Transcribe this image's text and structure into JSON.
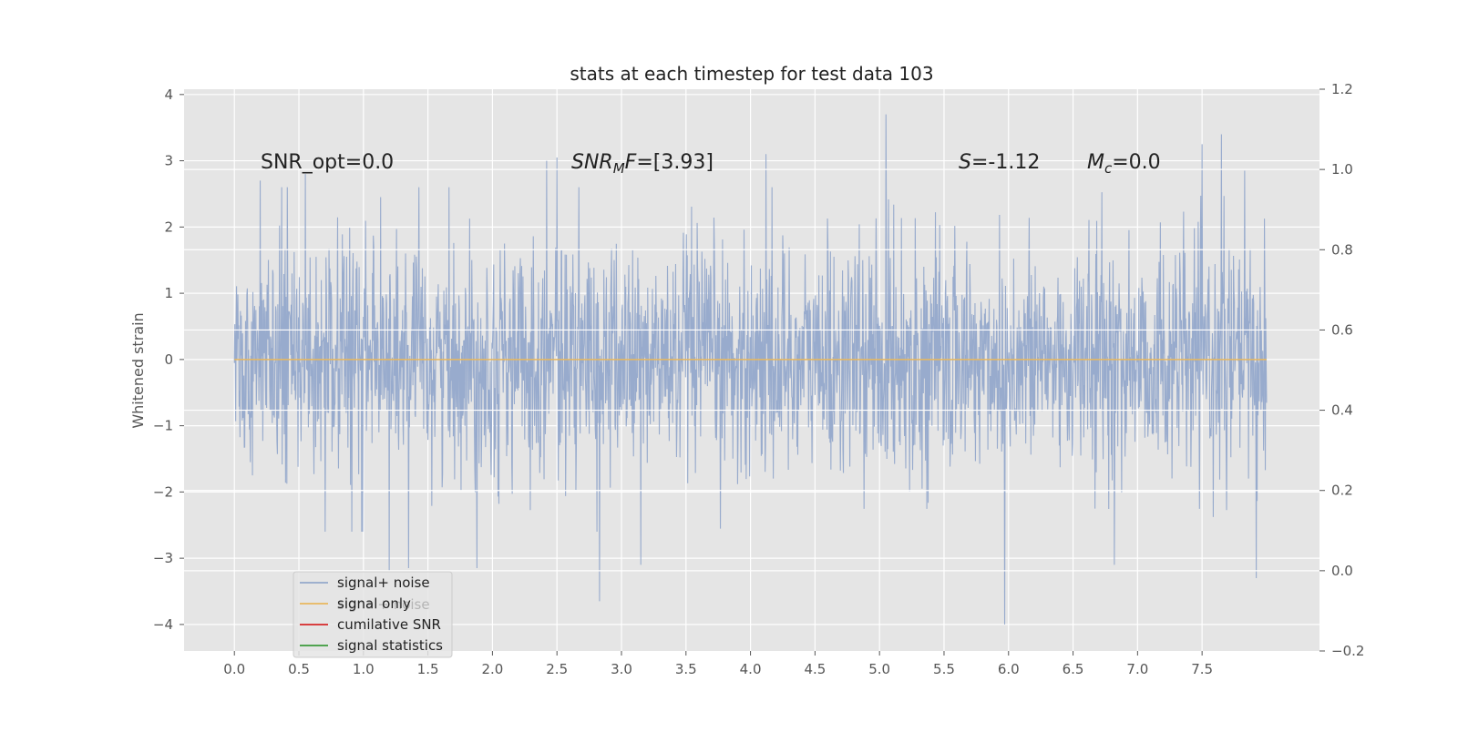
{
  "chart_data": {
    "type": "line",
    "title": "stats at each timestep for test data 103",
    "ylabel": "Whitened strain",
    "xlabel": "",
    "xlim": [
      -0.39,
      8.41
    ],
    "ylim": [
      -4.4,
      4.08
    ],
    "y2lim": [
      -0.2,
      1.2
    ],
    "x_ticks": [
      0.0,
      0.5,
      1.0,
      1.5,
      2.0,
      2.5,
      3.0,
      3.5,
      4.0,
      4.5,
      5.0,
      5.5,
      6.0,
      6.5,
      7.0,
      7.5
    ],
    "x_tick_labels": [
      "0.0",
      "0.5",
      "1.0",
      "1.5",
      "2.0",
      "2.5",
      "3.0",
      "3.5",
      "4.0",
      "4.5",
      "5.0",
      "5.5",
      "6.0",
      "6.5",
      "7.0",
      "7.5"
    ],
    "y_ticks": [
      -4,
      -3,
      -2,
      -1,
      0,
      1,
      2,
      3,
      4
    ],
    "y_tick_labels": [
      "−4",
      "−3",
      "−2",
      "−1",
      "0",
      "1",
      "2",
      "3",
      "4"
    ],
    "y2_ticks": [
      -0.2,
      0.0,
      0.2,
      0.4,
      0.6,
      0.8,
      1.0,
      1.2
    ],
    "y2_tick_labels": [
      "−0.2",
      "0.0",
      "0.2",
      "0.4",
      "0.6",
      "0.8",
      "1.0",
      "1.2"
    ],
    "grid": true,
    "legend_position": "lower-left",
    "series": [
      {
        "name": "signal+ noise",
        "color": "#94a8cb",
        "x_range": [
          0.0,
          8.0
        ],
        "typical_range": [
          -1.7,
          1.7
        ],
        "peaks": [
          {
            "x": 0.2,
            "y": 2.7
          },
          {
            "x": 0.55,
            "y": 2.8
          },
          {
            "x": 2.42,
            "y": 3.0
          },
          {
            "x": 2.5,
            "y": 3.05
          },
          {
            "x": 4.12,
            "y": 3.1
          },
          {
            "x": 5.05,
            "y": 3.7
          },
          {
            "x": 7.5,
            "y": 3.25
          },
          {
            "x": 7.65,
            "y": 3.4
          },
          {
            "x": 7.83,
            "y": 2.85
          },
          {
            "x": 1.2,
            "y": -3.2
          },
          {
            "x": 1.35,
            "y": -3.15
          },
          {
            "x": 1.88,
            "y": -3.15
          },
          {
            "x": 2.83,
            "y": -3.65
          },
          {
            "x": 3.15,
            "y": -3.1
          },
          {
            "x": 5.97,
            "y": -4.0
          },
          {
            "x": 6.82,
            "y": -3.1
          },
          {
            "x": 7.92,
            "y": -3.3
          }
        ]
      },
      {
        "name": "signal only",
        "color": "#e8b75d",
        "values": [
          0.0
        ]
      },
      {
        "name": "cumilative SNR",
        "color": "#d62728"
      },
      {
        "name": "signal statistics",
        "color": "#3a9a3a"
      }
    ],
    "annotations": [
      {
        "text": "SNR_opt=0.0"
      },
      {
        "main": "SNR",
        "sub": "M",
        "rest": "F=[3.93]"
      },
      {
        "main": "S",
        "rest": "=-1.12"
      },
      {
        "main": "M",
        "sub": "c",
        "rest": "=0.0"
      }
    ],
    "legend_overlap_text": "signal+ noise"
  }
}
